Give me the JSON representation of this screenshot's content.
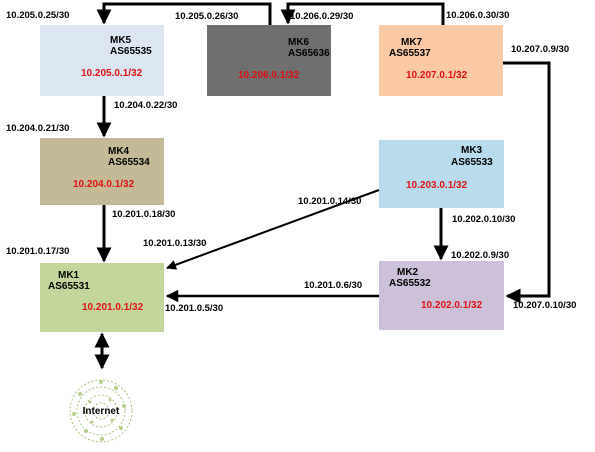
{
  "routers": {
    "mk5": {
      "name": "MK5",
      "asn": "AS65535",
      "ip": "10.205.0.1/32"
    },
    "mk6": {
      "name": "MK6",
      "asn": "AS65636",
      "ip": "10.206.0.1/32"
    },
    "mk7": {
      "name": "MK7",
      "asn": "AS65537",
      "ip": "10.207.0.1/32"
    },
    "mk4": {
      "name": "MK4",
      "asn": "AS65534",
      "ip": "10.204.0.1/32"
    },
    "mk3": {
      "name": "MK3",
      "asn": "AS65533",
      "ip": "10.203.0.1/32"
    },
    "mk1": {
      "name": "MK1",
      "asn": "AS65531",
      "ip": "10.201.0.1/32"
    },
    "mk2": {
      "name": "MK2",
      "asn": "AS65532",
      "ip": "10.202.0.1/32"
    }
  },
  "links": {
    "mk5_top": "10.205.0.25/30",
    "mk6_left": "10.205.0.26/30",
    "mk6_right": "10.206.0.29/30",
    "mk7_top": "10.206.0.30/30",
    "mk7_right": "10.207.0.9/30",
    "mk5_bottom": "10.204.0.22/30",
    "mk4_top": "10.204.0.21/30",
    "mk4_bottom": "10.201.0.18/30",
    "mk1_top": "10.201.0.17/30",
    "mk3_left": "10.201.0.14/30",
    "mk1_upper": "10.201.0.13/30",
    "mk3_bottom": "10.202.0.10/30",
    "mk2_top": "10.202.0.9/30",
    "mk2_left": "10.201.0.6/30",
    "mk1_right": "10.201.0.5/30",
    "mk2_right": "10.207.0.10/30"
  },
  "internet": {
    "label": "Internet"
  },
  "colors": {
    "mk5": "#dce6f2",
    "mk6": "#6f6f6f",
    "mk7": "#fbc9a3",
    "mk4": "#c4bb96",
    "mk3": "#b7dcee",
    "mk1": "#c2d69b",
    "mk2": "#ccc0da",
    "ip_text": "#e01010"
  }
}
